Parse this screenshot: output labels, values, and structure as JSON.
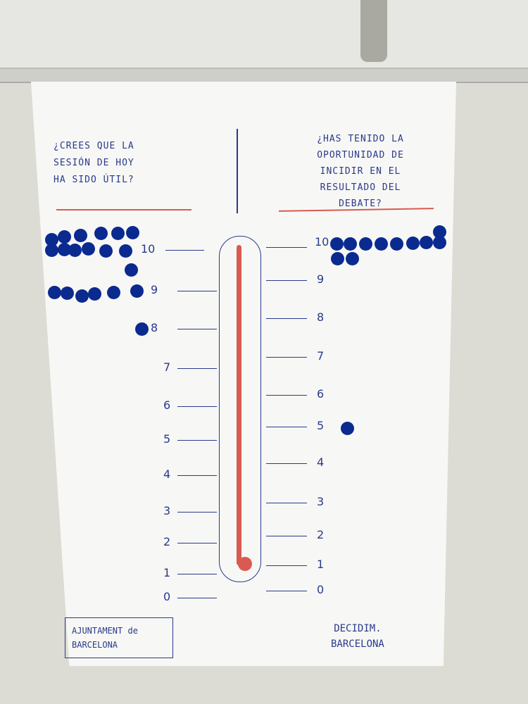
{
  "left_question": {
    "lines": [
      "¿CREES QUE LA",
      "SESIÓN DE HOY",
      "HA SIDO ÚTIL?"
    ]
  },
  "right_question": {
    "lines": [
      "¿HAS TENIDO LA",
      "OPORTUNIDAD DE",
      "INCIDIR EN EL",
      "RESULTADO DEL",
      "DEBATE?"
    ]
  },
  "scale_labels": [
    "0",
    "1",
    "2",
    "3",
    "4",
    "5",
    "6",
    "7",
    "8",
    "9",
    "10"
  ],
  "votes": {
    "left": {
      "10": 13,
      "9": 6,
      "8": 1
    },
    "right": {
      "10": 11,
      "5": 1
    }
  },
  "footer": {
    "left_lines": [
      "AJUNTAMENT de",
      "BARCELONA"
    ],
    "right_lines": [
      "DECIDIM.",
      "BARCELONA"
    ]
  },
  "colors": {
    "ink": "#2a3a8c",
    "red": "#d85a50",
    "dot": "#0a2a8f"
  }
}
